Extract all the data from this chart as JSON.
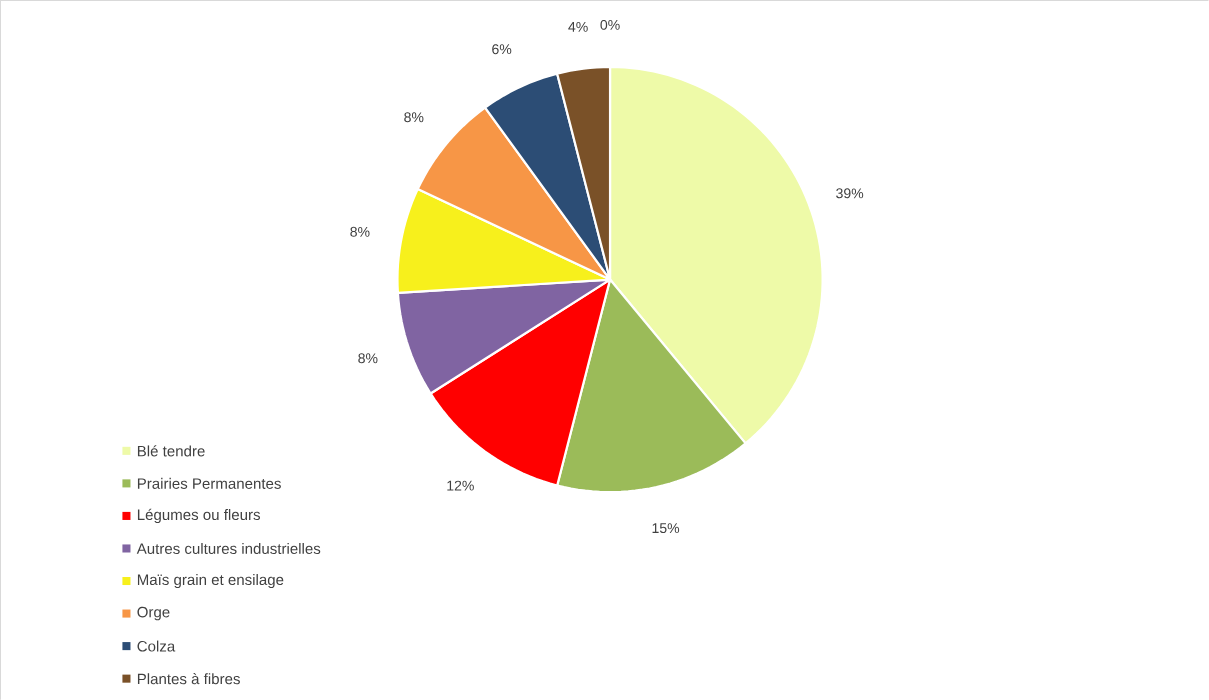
{
  "chart_data": {
    "type": "pie",
    "categories": [
      "Blé tendre",
      "Prairies Permanentes",
      "Légumes ou fleurs",
      "Autres cultures industrielles",
      "Maïs grain et ensilage",
      "Orge",
      "Colza",
      "Plantes à fibres",
      null
    ],
    "values": [
      39,
      15,
      12,
      8,
      8,
      8,
      6,
      4,
      0
    ],
    "value_labels": [
      "39%",
      "15%",
      "12%",
      "8%",
      "8%",
      "8%",
      "6%",
      "4%",
      "0%"
    ],
    "colors": [
      "#eefaa8",
      "#9bbb59",
      "#ff0000",
      "#8064a2",
      "#f7f01c",
      "#f79646",
      "#2c4d75",
      "#7a5128",
      "#a5a5a5"
    ],
    "legend": "bottom left"
  }
}
